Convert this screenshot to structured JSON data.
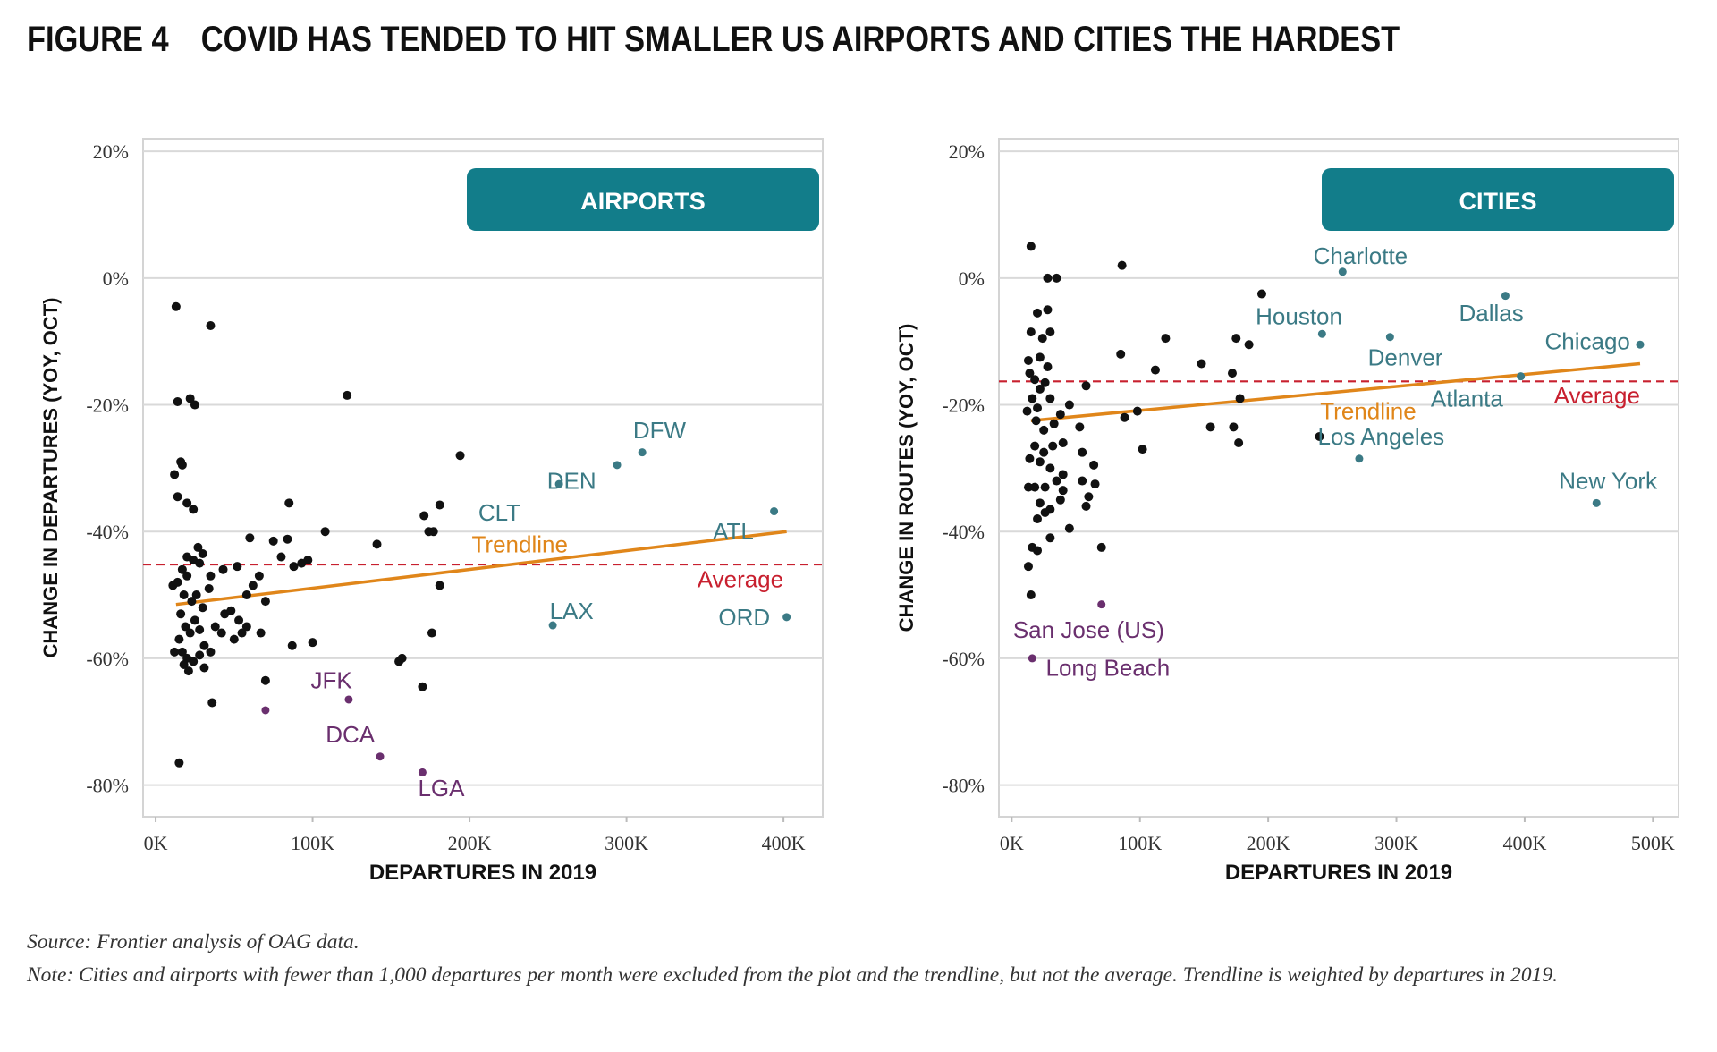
{
  "figure": {
    "number": "FIGURE 4",
    "title": "COVID HAS TENDED TO HIT SMALLER US AIRPORTS AND CITIES THE HARDEST"
  },
  "footer": {
    "source": "Source: Frontier analysis of OAG data.",
    "note": "Note: Cities and airports with fewer than 1,000 departures per month were excluded from the plot and the trendline, but not the average. Trendline is weighted by departures in 2019."
  },
  "colors": {
    "panel_header": "#127d8a",
    "point": "#111111",
    "large_label": "#3b7a85",
    "small_label": "#6a2f6e",
    "trendline": "#e0861a",
    "average": "#c8202f",
    "grid": "#d9d9d9"
  },
  "chart_data": [
    {
      "type": "scatter",
      "panel": "AIRPORTS",
      "xlabel": "DEPARTURES IN 2019",
      "ylabel": "CHANGE IN DEPARTURES (YOY, OCT)",
      "xlim": [
        -8000,
        425000
      ],
      "ylim": [
        -85,
        22
      ],
      "xticks": [
        {
          "v": 0,
          "label": "0K"
        },
        {
          "v": 100000,
          "label": "100K"
        },
        {
          "v": 200000,
          "label": "200K"
        },
        {
          "v": 300000,
          "label": "300K"
        },
        {
          "v": 400000,
          "label": "400K"
        }
      ],
      "yticks": [
        {
          "v": 20,
          "label": "20%"
        },
        {
          "v": 0,
          "label": "0%"
        },
        {
          "v": -20,
          "label": "-20%"
        },
        {
          "v": -40,
          "label": "-40%"
        },
        {
          "v": -60,
          "label": "-60%"
        },
        {
          "v": -80,
          "label": "-80%"
        }
      ],
      "trendline": {
        "label": "Trendline",
        "x": [
          13000,
          402000
        ],
        "y": [
          -51.5,
          -40.0
        ],
        "label_at": [
          232000,
          -42.0
        ]
      },
      "average": {
        "label": "Average",
        "y": -45.2,
        "label_at": [
          400000,
          -47.5
        ]
      },
      "points": [
        [
          13000,
          -4.5
        ],
        [
          35000,
          -7.5
        ],
        [
          14000,
          -19.5
        ],
        [
          22000,
          -19
        ],
        [
          25000,
          -20
        ],
        [
          122000,
          -18.5
        ],
        [
          16000,
          -29
        ],
        [
          17000,
          -29.5
        ],
        [
          12000,
          -31
        ],
        [
          20000,
          -35.5
        ],
        [
          24000,
          -36.5
        ],
        [
          14000,
          -34.5
        ],
        [
          85000,
          -35.5
        ],
        [
          108000,
          -40
        ],
        [
          141000,
          -42
        ],
        [
          171000,
          -37.5
        ],
        [
          174000,
          -40
        ],
        [
          177000,
          -40
        ],
        [
          181000,
          -35.8
        ],
        [
          194000,
          -28
        ],
        [
          27000,
          -42.5
        ],
        [
          30000,
          -43.5
        ],
        [
          20000,
          -44
        ],
        [
          24000,
          -44.5
        ],
        [
          17000,
          -46
        ],
        [
          28000,
          -45
        ],
        [
          35000,
          -47
        ],
        [
          43000,
          -46
        ],
        [
          52000,
          -45.5
        ],
        [
          60000,
          -41
        ],
        [
          75000,
          -41.5
        ],
        [
          84000,
          -41.2
        ],
        [
          80000,
          -44
        ],
        [
          88000,
          -45.5
        ],
        [
          93000,
          -45
        ],
        [
          97000,
          -44.5
        ],
        [
          11000,
          -48.5
        ],
        [
          14000,
          -48
        ],
        [
          20000,
          -47
        ],
        [
          18000,
          -50
        ],
        [
          23000,
          -51
        ],
        [
          26000,
          -50
        ],
        [
          30000,
          -52
        ],
        [
          34000,
          -49
        ],
        [
          38000,
          -55
        ],
        [
          44000,
          -53
        ],
        [
          48000,
          -52.5
        ],
        [
          53000,
          -54
        ],
        [
          55000,
          -56
        ],
        [
          58000,
          -50
        ],
        [
          62000,
          -48.5
        ],
        [
          66000,
          -47
        ],
        [
          70000,
          -51
        ],
        [
          16000,
          -53
        ],
        [
          19000,
          -55
        ],
        [
          22000,
          -56
        ],
        [
          25000,
          -54
        ],
        [
          28000,
          -55.5
        ],
        [
          31000,
          -58
        ],
        [
          15000,
          -57
        ],
        [
          17000,
          -59
        ],
        [
          20000,
          -60
        ],
        [
          12000,
          -59
        ],
        [
          18000,
          -61
        ],
        [
          21000,
          -62
        ],
        [
          24000,
          -60.5
        ],
        [
          28000,
          -59.5
        ],
        [
          31000,
          -61.5
        ],
        [
          35000,
          -59
        ],
        [
          42000,
          -56
        ],
        [
          50000,
          -57
        ],
        [
          58000,
          -55
        ],
        [
          67000,
          -56
        ],
        [
          87000,
          -58
        ],
        [
          100000,
          -57.5
        ],
        [
          155000,
          -60.5
        ],
        [
          157000,
          -60
        ],
        [
          176000,
          -56
        ],
        [
          181000,
          -48.5
        ],
        [
          15000,
          -76.5
        ],
        [
          36000,
          -67
        ],
        [
          70000,
          -63.5
        ],
        [
          170000,
          -64.5
        ]
      ],
      "highlighted": [
        {
          "label": "DFW",
          "x": 310000,
          "y": -27.5,
          "group": "large",
          "label_at": [
            321000,
            -24
          ]
        },
        {
          "label": "DEN",
          "x": 294000,
          "y": -29.5,
          "group": "large",
          "label_at": [
            265000,
            -32
          ]
        },
        {
          "label": "CLT",
          "x": 257000,
          "y": -32.5,
          "group": "large",
          "label_at": [
            219000,
            -37
          ]
        },
        {
          "label": "ATL",
          "x": 394000,
          "y": -36.8,
          "group": "large",
          "label_at": [
            368000,
            -40
          ]
        },
        {
          "label": "LAX",
          "x": 253000,
          "y": -54.8,
          "group": "large",
          "label_at": [
            265000,
            -52.5
          ]
        },
        {
          "label": "ORD",
          "x": 402000,
          "y": -53.5,
          "group": "large",
          "label_at": [
            375000,
            -53.5
          ]
        },
        {
          "label": "JFK",
          "x": 123000,
          "y": -66.5,
          "group": "small",
          "label_at": [
            112000,
            -63.5
          ]
        },
        {
          "label": "DCA",
          "x": 143000,
          "y": -75.5,
          "group": "small",
          "label_at": [
            124000,
            -72
          ]
        },
        {
          "label": "LGA",
          "x": 170000,
          "y": -78,
          "group": "small",
          "label_at": [
            182000,
            -80.5
          ]
        },
        {
          "label": "",
          "x": 70000,
          "y": -68.2,
          "group": "small"
        }
      ]
    },
    {
      "type": "scatter",
      "panel": "CITIES",
      "xlabel": "DEPARTURES IN 2019",
      "ylabel": "CHANGE IN ROUTES (YOY, OCT)",
      "xlim": [
        -10000,
        520000
      ],
      "ylim": [
        -85,
        22
      ],
      "xticks": [
        {
          "v": 0,
          "label": "0K"
        },
        {
          "v": 100000,
          "label": "100K"
        },
        {
          "v": 200000,
          "label": "200K"
        },
        {
          "v": 300000,
          "label": "300K"
        },
        {
          "v": 400000,
          "label": "400K"
        },
        {
          "v": 500000,
          "label": "500K"
        }
      ],
      "yticks": [
        {
          "v": 20,
          "label": "20%"
        },
        {
          "v": 0,
          "label": "0%"
        },
        {
          "v": -20,
          "label": "-20%"
        },
        {
          "v": -40,
          "label": "-40%"
        },
        {
          "v": -60,
          "label": "-60%"
        },
        {
          "v": -80,
          "label": "-80%"
        }
      ],
      "trendline": {
        "label": "Trendline",
        "x": [
          15000,
          490000
        ],
        "y": [
          -22.5,
          -13.5
        ],
        "label_at": [
          278000,
          -21
        ]
      },
      "average": {
        "label": "Average",
        "y": -16.3,
        "label_at": [
          490000,
          -18.5
        ]
      },
      "points": [
        [
          15000,
          5
        ],
        [
          86000,
          2
        ],
        [
          28000,
          0
        ],
        [
          35000,
          0
        ],
        [
          20000,
          -5.5
        ],
        [
          28000,
          -5
        ],
        [
          15000,
          -8.5
        ],
        [
          24000,
          -9.5
        ],
        [
          30000,
          -8.5
        ],
        [
          13000,
          -13
        ],
        [
          22000,
          -12.5
        ],
        [
          28000,
          -14
        ],
        [
          14000,
          -15
        ],
        [
          18000,
          -16
        ],
        [
          26000,
          -16.5
        ],
        [
          22000,
          -17.5
        ],
        [
          16000,
          -19
        ],
        [
          12000,
          -21
        ],
        [
          20000,
          -20.5
        ],
        [
          30000,
          -19
        ],
        [
          38000,
          -21.5
        ],
        [
          45000,
          -20
        ],
        [
          58000,
          -17
        ],
        [
          53000,
          -23.5
        ],
        [
          19000,
          -22.5
        ],
        [
          25000,
          -24
        ],
        [
          33000,
          -23
        ],
        [
          40000,
          -26
        ],
        [
          18000,
          -26.5
        ],
        [
          25000,
          -27.5
        ],
        [
          32000,
          -26.5
        ],
        [
          14000,
          -28.5
        ],
        [
          22000,
          -29
        ],
        [
          30000,
          -30
        ],
        [
          40000,
          -31
        ],
        [
          13000,
          -33
        ],
        [
          18000,
          -33
        ],
        [
          26000,
          -33
        ],
        [
          35000,
          -32
        ],
        [
          40000,
          -33.5
        ],
        [
          55000,
          -32
        ],
        [
          65000,
          -32.5
        ],
        [
          22000,
          -35.5
        ],
        [
          30000,
          -36.5
        ],
        [
          38000,
          -35
        ],
        [
          60000,
          -34.5
        ],
        [
          58000,
          -36
        ],
        [
          20000,
          -38
        ],
        [
          26000,
          -37
        ],
        [
          45000,
          -39.5
        ],
        [
          16000,
          -42.5
        ],
        [
          20000,
          -43
        ],
        [
          30000,
          -41
        ],
        [
          70000,
          -42.5
        ],
        [
          13000,
          -45.5
        ],
        [
          15000,
          -50
        ],
        [
          55000,
          -27.5
        ],
        [
          64000,
          -29.5
        ],
        [
          85000,
          -12
        ],
        [
          98000,
          -21
        ],
        [
          88000,
          -22
        ],
        [
          102000,
          -27
        ],
        [
          112000,
          -14.5
        ],
        [
          120000,
          -9.5
        ],
        [
          148000,
          -13.5
        ],
        [
          155000,
          -23.5
        ],
        [
          172000,
          -15
        ],
        [
          175000,
          -9.5
        ],
        [
          178000,
          -19
        ],
        [
          173000,
          -23.5
        ],
        [
          177000,
          -26
        ],
        [
          185000,
          -10.5
        ],
        [
          195000,
          -2.5
        ],
        [
          240000,
          -25
        ]
      ],
      "highlighted": [
        {
          "label": "Charlotte",
          "x": 258000,
          "y": 1,
          "group": "large",
          "label_at": [
            272000,
            3.5
          ]
        },
        {
          "label": "Houston",
          "x": 242000,
          "y": -8.8,
          "group": "large",
          "label_at": [
            224000,
            -6
          ]
        },
        {
          "label": "Dallas",
          "x": 385000,
          "y": -2.8,
          "group": "large",
          "label_at": [
            374000,
            -5.5
          ]
        },
        {
          "label": "Denver",
          "x": 295000,
          "y": -9.3,
          "group": "large",
          "label_at": [
            307000,
            -12.5
          ]
        },
        {
          "label": "Chicago",
          "x": 490000,
          "y": -10.5,
          "group": "large",
          "label_at": [
            449000,
            -10
          ]
        },
        {
          "label": "Atlanta",
          "x": 397000,
          "y": -15.5,
          "group": "large",
          "label_at": [
            355000,
            -19
          ]
        },
        {
          "label": "Los Angeles",
          "x": 271000,
          "y": -28.5,
          "group": "large",
          "label_at": [
            288000,
            -25
          ]
        },
        {
          "label": "New York",
          "x": 456000,
          "y": -35.5,
          "group": "large",
          "label_at": [
            465000,
            -32
          ]
        },
        {
          "label": "San Jose (US)",
          "x": 70000,
          "y": -51.5,
          "group": "small",
          "label_at": [
            60000,
            -55.5
          ]
        },
        {
          "label": "Long Beach",
          "x": 16000,
          "y": -60,
          "group": "small",
          "label_at": [
            75000,
            -61.5
          ]
        }
      ]
    }
  ]
}
